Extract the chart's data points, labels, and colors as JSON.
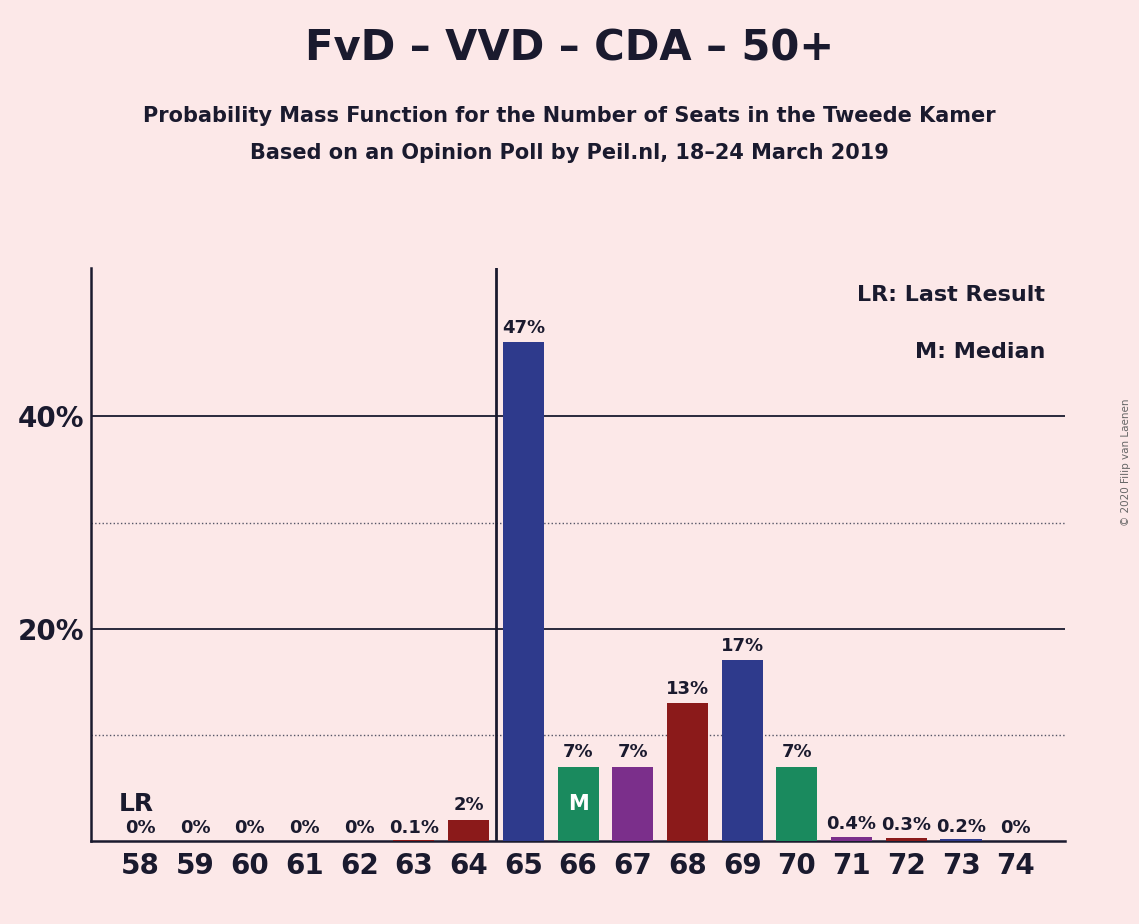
{
  "title": "FvD – VVD – CDA – 50+",
  "subtitle1": "Probability Mass Function for the Number of Seats in the Tweede Kamer",
  "subtitle2": "Based on an Opinion Poll by Peil.nl, 18–24 March 2019",
  "copyright": "© 2020 Filip van Laenen",
  "legend_lr": "LR: Last Result",
  "legend_m": "M: Median",
  "lr_label": "LR",
  "seats": [
    58,
    59,
    60,
    61,
    62,
    63,
    64,
    65,
    66,
    67,
    68,
    69,
    70,
    71,
    72,
    73,
    74
  ],
  "probabilities": [
    0.0,
    0.0,
    0.0,
    0.0,
    0.0,
    0.1,
    2.0,
    47.0,
    7.0,
    7.0,
    13.0,
    17.0,
    7.0,
    0.4,
    0.3,
    0.2,
    0.0
  ],
  "bar_colors": [
    "#8b1a1a",
    "#8b1a1a",
    "#8b1a1a",
    "#8b1a1a",
    "#8b1a1a",
    "#8b1a1a",
    "#8b1a1a",
    "#2e3a8c",
    "#1a8a5e",
    "#7b2f8b",
    "#8b1a1a",
    "#2e3a8c",
    "#1a8a5e",
    "#7b2f8b",
    "#8b1a1a",
    "#2e3a8c",
    "#2e3a8c"
  ],
  "median_seat": 66,
  "lr_seat": 65,
  "label_texts": [
    "0%",
    "0%",
    "0%",
    "0%",
    "0%",
    "0.1%",
    "2%",
    "47%",
    "7%",
    "7%",
    "13%",
    "17%",
    "7%",
    "0.4%",
    "0.3%",
    "0.2%",
    "0%"
  ],
  "background_color": "#fce8e8",
  "solid_grid_lines": [
    20,
    40
  ],
  "dotted_grid_lines": [
    10,
    30
  ],
  "ytick_positions": [
    20,
    40
  ],
  "ytick_labels": [
    "20%",
    "40%"
  ],
  "ylim": [
    0,
    54
  ],
  "title_fontsize": 30,
  "subtitle_fontsize": 15,
  "axis_label_fontsize": 20,
  "bar_label_fontsize": 13,
  "legend_fontsize": 16,
  "xlabel_fontsize": 20
}
